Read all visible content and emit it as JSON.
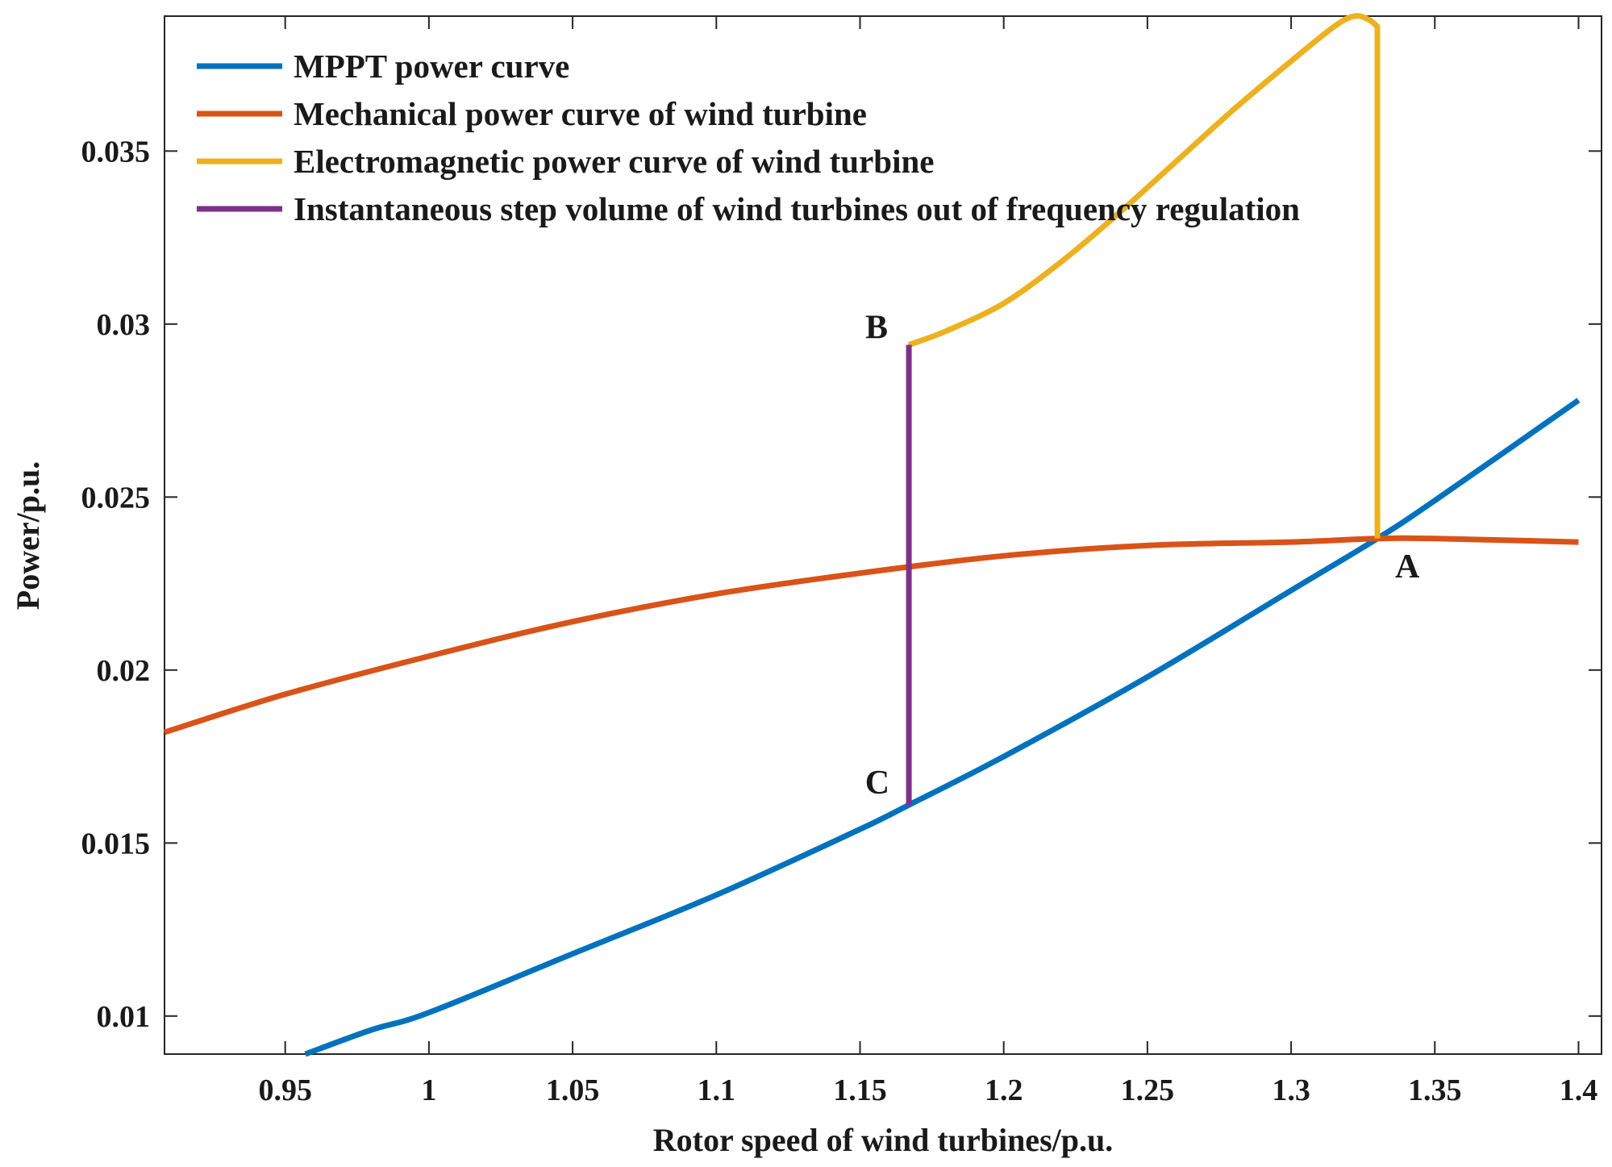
{
  "chart_data": {
    "type": "line",
    "title": "",
    "xlabel": "Rotor speed of wind turbines/p.u.",
    "ylabel": "Power/p.u.",
    "xlim": [
      0.908,
      1.408
    ],
    "ylim": [
      0.0089,
      0.0389
    ],
    "x_ticks": [
      0.95,
      1.0,
      1.05,
      1.1,
      1.15,
      1.2,
      1.25,
      1.3,
      1.35,
      1.4
    ],
    "x_tick_labels": [
      "0.95",
      "1",
      "1.05",
      "1.1",
      "1.15",
      "1.2",
      "1.25",
      "1.3",
      "1.35",
      "1.4"
    ],
    "y_ticks": [
      0.01,
      0.015,
      0.02,
      0.025,
      0.03,
      0.035
    ],
    "y_tick_labels": [
      "0.01",
      "0.015",
      "0.02",
      "0.025",
      "0.03",
      "0.035"
    ],
    "grid": false,
    "legend_position": "top-left",
    "series": [
      {
        "name": "MPPT power curve",
        "color": "#0072BD",
        "x": [
          0.957,
          0.98,
          1.0,
          1.05,
          1.1,
          1.15,
          1.167,
          1.2,
          1.25,
          1.3,
          1.33,
          1.35,
          1.4
        ],
        "y": [
          0.0089,
          0.0096,
          0.0101,
          0.0118,
          0.0135,
          0.0154,
          0.0161,
          0.0175,
          0.0198,
          0.0223,
          0.0238,
          0.0249,
          0.0278
        ]
      },
      {
        "name": "Mechanical power curve of  wind turbine",
        "color": "#D95319",
        "x": [
          0.908,
          0.95,
          1.0,
          1.05,
          1.1,
          1.15,
          1.2,
          1.25,
          1.3,
          1.33,
          1.35,
          1.4
        ],
        "y": [
          0.0182,
          0.0193,
          0.0204,
          0.0214,
          0.0222,
          0.0228,
          0.0233,
          0.0236,
          0.0237,
          0.0238,
          0.0238,
          0.0237
        ]
      },
      {
        "name": "Electromagnetic  power curve of wind turbine",
        "color": "#EDB120",
        "x": [
          1.167,
          1.18,
          1.2,
          1.22,
          1.24,
          1.26,
          1.28,
          1.3,
          1.315,
          1.322,
          1.327,
          1.33,
          1.33,
          1.33
        ],
        "y": [
          0.0294,
          0.0298,
          0.0306,
          0.0318,
          0.0332,
          0.0347,
          0.0362,
          0.0376,
          0.0386,
          0.0389,
          0.0388,
          0.0386,
          0.031,
          0.0238
        ]
      },
      {
        "name": "Instantaneous step volume of wind turbines out of frequency regulation",
        "color": "#7E2F8E",
        "x": [
          1.167,
          1.167
        ],
        "y": [
          0.0161,
          0.0294
        ]
      }
    ],
    "annotations": [
      {
        "text": "A",
        "x": 1.33,
        "y": 0.0238
      },
      {
        "text": "B",
        "x": 1.167,
        "y": 0.0294
      },
      {
        "text": "C",
        "x": 1.167,
        "y": 0.0161
      }
    ]
  }
}
